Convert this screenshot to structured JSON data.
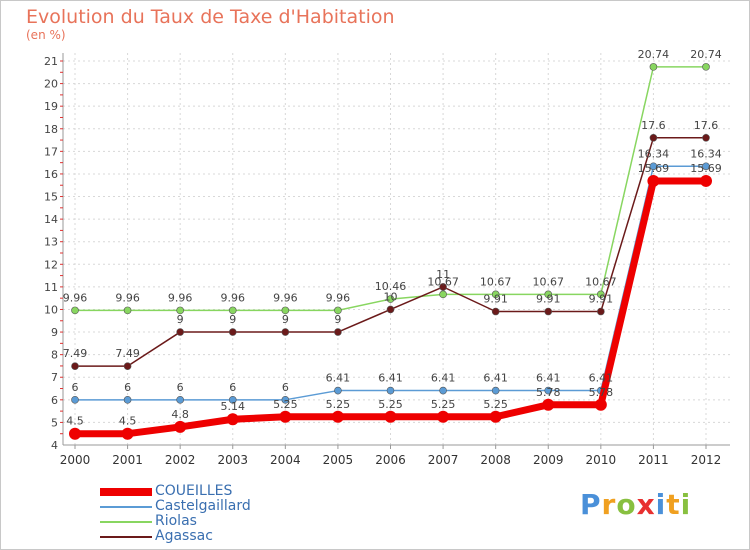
{
  "chart_data": {
    "type": "line",
    "title": "Evolution du Taux de Taxe d'Habitation",
    "unit_label": "(en %)",
    "x": [
      "2000",
      "2001",
      "2002",
      "2003",
      "2004",
      "2005",
      "2006",
      "2007",
      "2008",
      "2009",
      "2010",
      "2011",
      "2012"
    ],
    "ylim": [
      4,
      21
    ],
    "yticks": [
      "4",
      "5",
      "6",
      "7",
      "8",
      "9",
      "10",
      "11",
      "12",
      "13",
      "14",
      "15",
      "16",
      "17",
      "18",
      "19",
      "20",
      "21"
    ],
    "series": [
      {
        "name": "COUEILLES",
        "color": "#ee0000",
        "line_width": 7,
        "marker_radius": 6,
        "values": [
          4.5,
          4.5,
          4.8,
          5.14,
          5.25,
          5.25,
          5.25,
          5.25,
          5.25,
          5.78,
          5.78,
          15.69,
          15.69
        ],
        "labels": [
          "4.5",
          "4.5",
          "4.8",
          "5.14",
          "5.25",
          "5.25",
          "5.25",
          "5.25",
          "5.25",
          "5.78",
          "5.78",
          "15.69",
          "15.69"
        ]
      },
      {
        "name": "Castelgaillard",
        "color": "#5b9bd5",
        "line_width": 1.5,
        "marker_radius": 3.5,
        "values": [
          6,
          6,
          6,
          6,
          6,
          6.41,
          6.41,
          6.41,
          6.41,
          6.41,
          6.41,
          16.34,
          16.34
        ],
        "labels": [
          "6",
          "6",
          "6",
          "6",
          "6",
          "6.41",
          "6.41",
          "6.41",
          "6.41",
          "6.41",
          "6.41",
          "16.34",
          "16.34"
        ]
      },
      {
        "name": "Riolas",
        "color": "#88d660",
        "line_width": 1.5,
        "marker_radius": 3.5,
        "values": [
          9.96,
          9.96,
          9.96,
          9.96,
          9.96,
          9.96,
          10.46,
          10.67,
          10.67,
          10.67,
          10.67,
          20.74,
          20.74
        ],
        "labels": [
          "9.96",
          "9.96",
          "9.96",
          "9.96",
          "9.96",
          "9.96",
          "10.46",
          "10.67",
          "10.67",
          "10.67",
          "10.67",
          "20.74",
          "20.74"
        ]
      },
      {
        "name": "Agassac",
        "color": "#6b1a1a",
        "line_width": 1.5,
        "marker_radius": 3.5,
        "values": [
          7.49,
          7.49,
          9,
          9,
          9,
          9,
          10,
          11,
          9.91,
          9.91,
          9.91,
          17.6,
          17.6
        ],
        "labels": [
          "7.49",
          "7.49",
          "9",
          "9",
          "9",
          "9",
          "10",
          "11",
          "9.91",
          "9.91",
          "9.91",
          "17.6",
          "17.6"
        ]
      }
    ]
  },
  "legend": [
    {
      "label": "COUEILLES",
      "color": "#ee0000",
      "thick": true
    },
    {
      "label": "Castelgaillard",
      "color": "#5b9bd5",
      "thick": false
    },
    {
      "label": "Riolas",
      "color": "#88d660",
      "thick": false
    },
    {
      "label": "Agassac",
      "color": "#6b1a1a",
      "thick": false
    }
  ],
  "logo": {
    "letters": [
      {
        "ch": "P",
        "color": "#4a90d9"
      },
      {
        "ch": "r",
        "color": "#f0a020"
      },
      {
        "ch": "o",
        "color": "#88c040"
      },
      {
        "ch": "x",
        "color": "#e83030"
      },
      {
        "ch": "i",
        "color": "#4a90d9"
      },
      {
        "ch": "t",
        "color": "#f0a020"
      },
      {
        "ch": "i",
        "color": "#88c040"
      }
    ]
  }
}
